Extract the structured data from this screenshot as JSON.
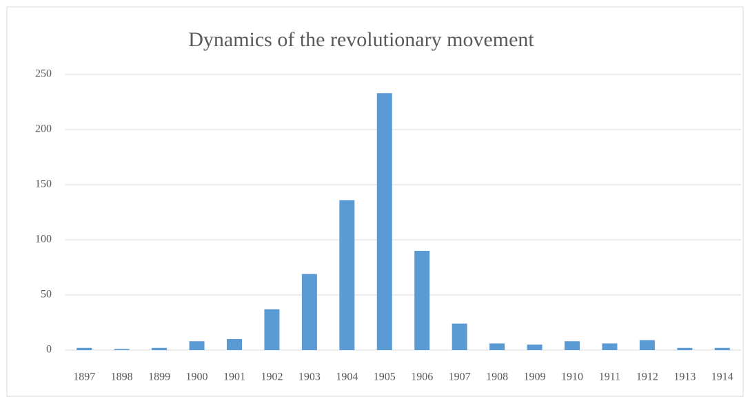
{
  "chart_data": {
    "type": "bar",
    "title": "Dynamics of the revolutionary movement",
    "categories": [
      "1897",
      "1898",
      "1899",
      "1900",
      "1901",
      "1902",
      "1903",
      "1904",
      "1905",
      "1906",
      "1907",
      "1908",
      "1909",
      "1910",
      "1911",
      "1912",
      "1913",
      "1914"
    ],
    "values": [
      2,
      1,
      2,
      8,
      10,
      37,
      69,
      136,
      233,
      90,
      24,
      6,
      5,
      8,
      6,
      9,
      2,
      2
    ],
    "color": "#5b9bd5",
    "ylim": [
      0,
      250
    ],
    "yticks": [
      0,
      50,
      100,
      150,
      200,
      250
    ],
    "grid": true
  }
}
